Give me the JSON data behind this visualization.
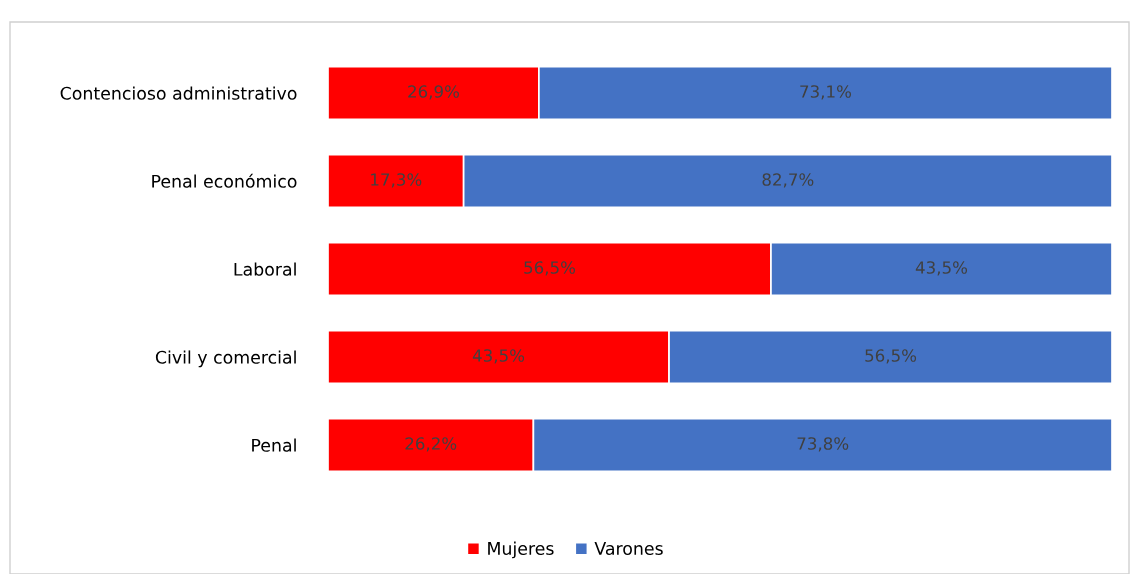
{
  "chart_data": {
    "type": "bar",
    "orientation": "horizontal",
    "stacked": true,
    "categories": [
      "Contencioso administrativo",
      "Penal económico",
      "Laboral",
      "Civil y comercial",
      "Penal"
    ],
    "series": [
      {
        "name": "Mujeres",
        "color": "#ff0000",
        "values": [
          26.9,
          17.3,
          56.5,
          43.5,
          26.2
        ],
        "value_labels": [
          "26,9%",
          "17,3%",
          "56,5%",
          "43,5%",
          "26,2%"
        ]
      },
      {
        "name": "Varones",
        "color": "#4472c4",
        "values": [
          73.1,
          82.7,
          43.5,
          56.5,
          73.8
        ],
        "value_labels": [
          "73,1%",
          "82,7%",
          "43,5%",
          "56,5%",
          "73,8%"
        ]
      }
    ],
    "xlim": [
      0,
      100
    ],
    "tick_labels": "y",
    "grid": false,
    "legend": "bottom"
  }
}
